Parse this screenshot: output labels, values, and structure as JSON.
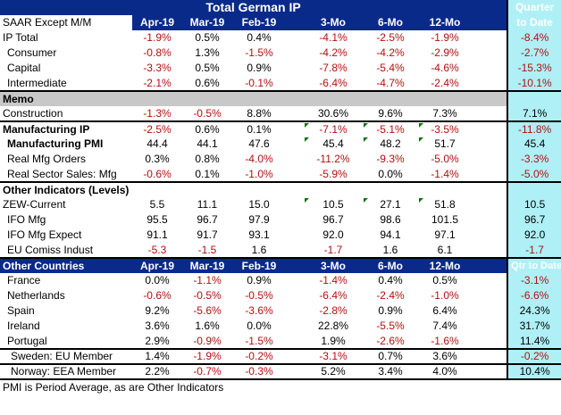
{
  "title": "Total German IP",
  "quarter_header": [
    "Quarter",
    "to Date"
  ],
  "header": {
    "label": "SAAR Except M/M",
    "cols": [
      "Apr-19",
      "Mar-19",
      "Feb-19",
      "3-Mo",
      "6-Mo",
      "12-Mo"
    ]
  },
  "ip": [
    {
      "label": "IP Total",
      "vals": [
        "-1.9%",
        "0.5%",
        "0.4%",
        "-4.1%",
        "-2.5%",
        "-1.9%",
        "-8.4%"
      ]
    },
    {
      "label": "Consumer",
      "vals": [
        "-0.8%",
        "1.3%",
        "-1.5%",
        "-4.2%",
        "-4.2%",
        "-2.9%",
        "-2.7%"
      ]
    },
    {
      "label": "Capital",
      "vals": [
        "-3.3%",
        "0.5%",
        "0.9%",
        "-7.8%",
        "-5.4%",
        "-4.6%",
        "-15.3%"
      ]
    },
    {
      "label": "Intermediate",
      "vals": [
        "-2.1%",
        "0.6%",
        "-0.1%",
        "-6.4%",
        "-4.7%",
        "-2.4%",
        "-10.1%"
      ]
    }
  ],
  "memo": {
    "label": "Memo"
  },
  "construction": {
    "label": "Construction",
    "vals": [
      "-1.3%",
      "-0.5%",
      "8.8%",
      "30.6%",
      "9.6%",
      "7.3%",
      "7.1%"
    ]
  },
  "mfg": [
    {
      "label": "Manufacturing IP",
      "vals": [
        "-2.5%",
        "0.6%",
        "0.1%",
        "-7.1%",
        "-5.1%",
        "-3.5%",
        "-11.8%"
      ]
    },
    {
      "label": "Manufacturing PMI",
      "vals": [
        "44.4",
        "44.1",
        "47.6",
        "45.4",
        "48.2",
        "51.7",
        "45.4"
      ]
    },
    {
      "label": "Real Mfg Orders",
      "vals": [
        "0.3%",
        "0.8%",
        "-4.0%",
        "-11.2%",
        "-9.3%",
        "-5.0%",
        "-3.3%"
      ]
    },
    {
      "label": "Real Sector Sales: Mfg",
      "vals": [
        "-0.6%",
        "0.1%",
        "-1.0%",
        "-5.9%",
        "0.0%",
        "-1.4%",
        "-5.0%"
      ]
    }
  ],
  "other_indicators": {
    "label": "Other Indicators (Levels)"
  },
  "levels": [
    {
      "label": "ZEW-Current",
      "vals": [
        "5.5",
        "11.1",
        "15.0",
        "10.5",
        "27.1",
        "51.8",
        "10.5"
      ]
    },
    {
      "label": "IFO Mfg",
      "vals": [
        "95.5",
        "96.7",
        "97.9",
        "96.7",
        "98.6",
        "101.5",
        "96.7"
      ]
    },
    {
      "label": "IFO Mfg Expect",
      "vals": [
        "91.1",
        "91.7",
        "93.1",
        "92.0",
        "94.1",
        "97.1",
        "92.0"
      ]
    },
    {
      "label": "EU Comiss Indust",
      "vals": [
        "-5.3",
        "-1.5",
        "1.6",
        "-1.7",
        "1.6",
        "6.1",
        "-1.7"
      ]
    }
  ],
  "other_countries": {
    "label": "Other Countries",
    "cols": [
      "Apr-19",
      "Mar-19",
      "Feb-19",
      "3-Mo",
      "6-Mo",
      "12-Mo"
    ],
    "qtd": "Qtr to Date"
  },
  "countries": [
    {
      "label": "France",
      "vals": [
        "0.0%",
        "-1.1%",
        "0.9%",
        "-1.4%",
        "0.4%",
        "0.5%",
        "-3.1%"
      ]
    },
    {
      "label": "Netherlands",
      "vals": [
        "-0.6%",
        "-0.5%",
        "-0.5%",
        "-6.4%",
        "-2.4%",
        "-1.0%",
        "-6.6%"
      ]
    },
    {
      "label": "Spain",
      "vals": [
        "9.2%",
        "-5.6%",
        "-3.6%",
        "-2.8%",
        "0.9%",
        "6.4%",
        "24.3%"
      ]
    },
    {
      "label": "Ireland",
      "vals": [
        "3.6%",
        "1.6%",
        "0.0%",
        "22.8%",
        "-5.5%",
        "7.4%",
        "31.7%"
      ]
    },
    {
      "label": "Portugal",
      "vals": [
        "2.9%",
        "-0.9%",
        "-1.5%",
        "1.9%",
        "-2.6%",
        "-1.6%",
        "11.4%"
      ]
    }
  ],
  "sweden": {
    "label": "Sweden: EU Member",
    "vals": [
      "1.4%",
      "-1.9%",
      "-0.2%",
      "-3.1%",
      "0.7%",
      "3.6%",
      "-0.2%"
    ]
  },
  "norway": {
    "label": "Norway: EEA Member",
    "vals": [
      "2.2%",
      "-0.7%",
      "-0.3%",
      "5.2%",
      "3.4%",
      "4.0%",
      "10.4%"
    ]
  },
  "footnote": "PMI is Period Average, as are Other Indicators",
  "colors": {
    "header_bg": "#0a2a8a",
    "quarter_bg": "#aef0f6",
    "negative": "#b01010",
    "memo_bg": "#c8c8c8"
  }
}
